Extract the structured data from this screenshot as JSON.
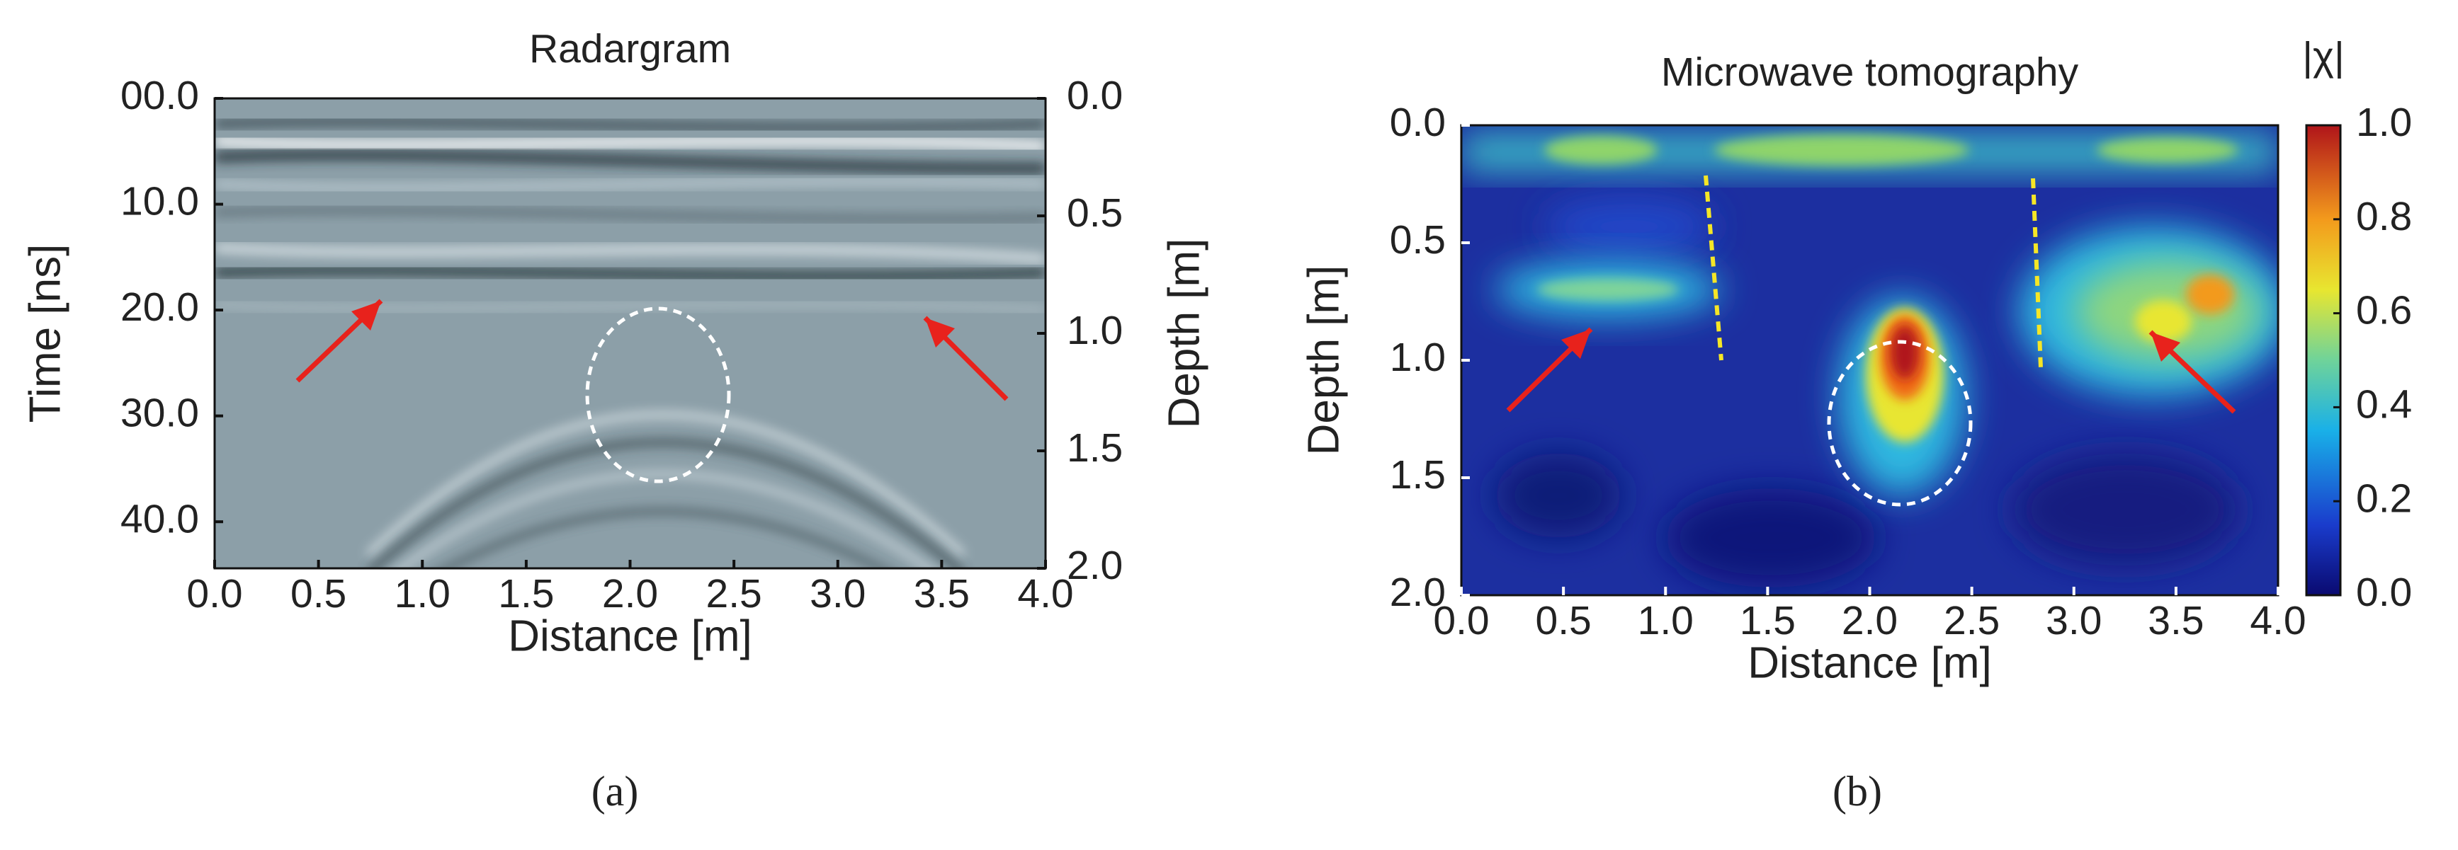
{
  "chart_data": [
    {
      "type": "heatmap",
      "title": "Radargram",
      "xlabel": "Distance [m]",
      "ylabel": "Time [ns]",
      "y2label": "Depth [m]",
      "xlim": [
        0,
        4
      ],
      "xticks": [
        {
          "value": 0,
          "label": "0.0"
        },
        0.5,
        {
          "value": 1,
          "label": "1.0"
        },
        1.5,
        {
          "value": 2,
          "label": "2.0"
        },
        2.5,
        {
          "value": 3,
          "label": "3.0"
        },
        3.5,
        {
          "value": 4,
          "label": "4.0"
        }
      ],
      "ylim": [
        0,
        44.4
      ],
      "yticks": [
        {
          "value": 0,
          "label": "00.0"
        },
        {
          "value": 10,
          "label": "10.0"
        },
        {
          "value": 20,
          "label": "20.0"
        },
        {
          "value": 30,
          "label": "30.0"
        },
        {
          "value": 40,
          "label": "40.0"
        }
      ],
      "y2lim": [
        0,
        2
      ],
      "y2ticks": [
        {
          "value": 0,
          "label": "0.0"
        },
        0.5,
        {
          "value": 1,
          "label": "1.0"
        },
        1.5,
        {
          "value": 2,
          "label": "2.0"
        }
      ],
      "panel_label": "(a)"
    },
    {
      "type": "heatmap",
      "title": "Microwave tomography",
      "xlabel": "Distance [m]",
      "ylabel": "Depth [m]",
      "xlim": [
        0,
        4
      ],
      "xticks": [
        {
          "value": 0,
          "label": "0.0"
        },
        0.5,
        {
          "value": 1,
          "label": "1.0"
        },
        1.5,
        {
          "value": 2,
          "label": "2.0"
        },
        2.5,
        {
          "value": 3,
          "label": "3.0"
        },
        3.5,
        {
          "value": 4,
          "label": "4.0"
        }
      ],
      "ylim": [
        0,
        2
      ],
      "yticks": [
        {
          "value": 0,
          "label": "0.0"
        },
        0.5,
        {
          "value": 1,
          "label": "1.0"
        },
        1.5,
        {
          "value": 2,
          "label": "2.0"
        }
      ],
      "colorbar_label": "|χ|",
      "clim": [
        0,
        1
      ],
      "colorbar_ticks": [
        {
          "value": 0,
          "label": "0.0"
        },
        0.2,
        0.4,
        0.6,
        0.8,
        {
          "value": 1,
          "label": "1.0"
        }
      ],
      "panel_label": "(b)"
    }
  ]
}
